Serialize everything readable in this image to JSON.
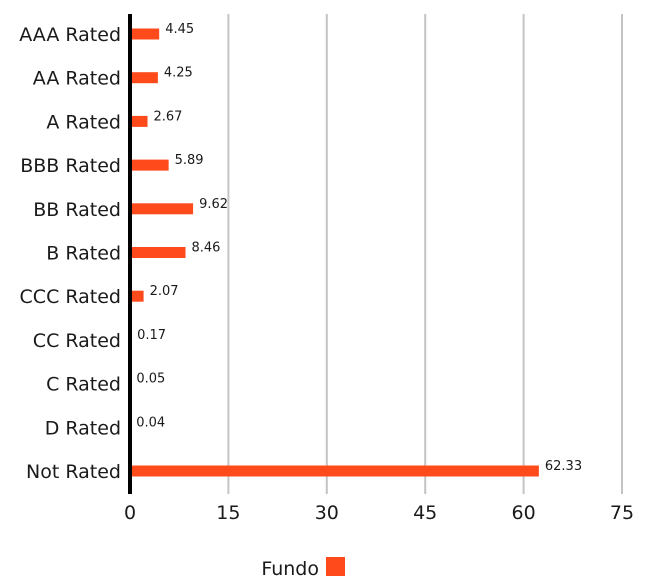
{
  "chart_data": {
    "type": "bar",
    "orientation": "horizontal",
    "categories": [
      "AAA Rated",
      "AA Rated",
      "A Rated",
      "BBB Rated",
      "BB Rated",
      "B Rated",
      "CCC Rated",
      "CC Rated",
      "C Rated",
      "D Rated",
      "Not Rated"
    ],
    "series": [
      {
        "name": "Fundo",
        "color": "#ff4a1c",
        "values": [
          4.45,
          4.25,
          2.67,
          5.89,
          9.62,
          8.46,
          2.07,
          0.17,
          0.05,
          0.04,
          62.33
        ],
        "labels": [
          "4.45",
          "4.25",
          "2.67",
          "5.89",
          "9.62",
          "8.46",
          "2.07",
          "0.17",
          "0.05",
          "0.04",
          "62.33"
        ]
      }
    ],
    "xlim": [
      0,
      75
    ],
    "xticks": [
      0,
      15,
      30,
      45,
      60,
      75
    ],
    "xtick_labels": [
      "0",
      "15",
      "30",
      "45",
      "60",
      "75"
    ],
    "grid": "vertical",
    "legend": "bottom-center",
    "title": "",
    "xlabel": "",
    "ylabel": ""
  }
}
